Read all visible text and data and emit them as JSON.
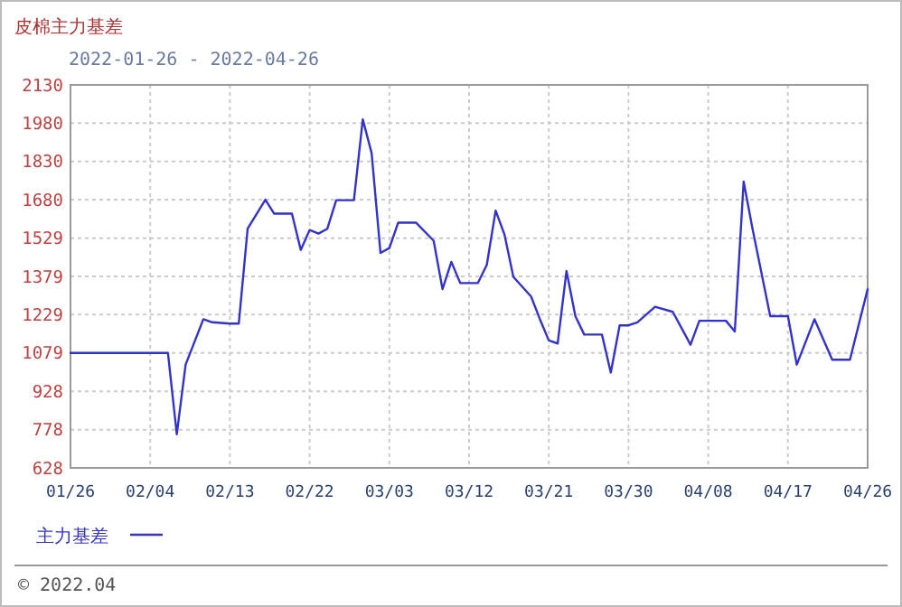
{
  "chart_data": {
    "type": "line",
    "title": "皮棉主力基差",
    "subtitle": "2022-01-26 - 2022-04-26",
    "x": [
      "2022-01-26",
      "2022-02-06",
      "2022-02-07",
      "2022-02-08",
      "2022-02-10",
      "2022-02-11",
      "2022-02-13",
      "2022-02-14",
      "2022-02-15",
      "2022-02-17",
      "2022-02-18",
      "2022-02-20",
      "2022-02-21",
      "2022-02-22",
      "2022-02-23",
      "2022-02-24",
      "2022-02-25",
      "2022-02-27",
      "2022-02-28",
      "2022-03-01",
      "2022-03-02",
      "2022-03-03",
      "2022-03-04",
      "2022-03-06",
      "2022-03-08",
      "2022-03-09",
      "2022-03-10",
      "2022-03-11",
      "2022-03-13",
      "2022-03-14",
      "2022-03-15",
      "2022-03-16",
      "2022-03-17",
      "2022-03-19",
      "2022-03-20",
      "2022-03-21",
      "2022-03-22",
      "2022-03-23",
      "2022-03-24",
      "2022-03-25",
      "2022-03-27",
      "2022-03-28",
      "2022-03-29",
      "2022-03-30",
      "2022-03-31",
      "2022-04-02",
      "2022-04-04",
      "2022-04-06",
      "2022-04-07",
      "2022-04-10",
      "2022-04-11",
      "2022-04-12",
      "2022-04-13",
      "2022-04-15",
      "2022-04-17",
      "2022-04-18",
      "2022-04-20",
      "2022-04-22",
      "2022-04-24",
      "2022-04-26"
    ],
    "series": [
      {
        "name": "主力基差",
        "color": "#3333cc",
        "values": [
          1079,
          1079,
          760,
          1033,
          1211,
          1199,
          1194,
          1194,
          1566,
          1680,
          1625,
          1625,
          1483,
          1561,
          1547,
          1566,
          1678,
          1678,
          1995,
          1862,
          1471,
          1490,
          1590,
          1590,
          1519,
          1329,
          1436,
          1353,
          1353,
          1424,
          1637,
          1543,
          1377,
          1300,
          1211,
          1128,
          1116,
          1400,
          1223,
          1151,
          1151,
          1002,
          1187,
          1187,
          1199,
          1260,
          1240,
          1111,
          1205,
          1205,
          1163,
          1751,
          1566,
          1223,
          1223,
          1033,
          1211,
          1052,
          1052,
          1329
        ]
      }
    ],
    "xlim": [
      "2022-01-26",
      "2022-04-26"
    ],
    "xticks": [
      {
        "value": "2022-01-26",
        "label": "01/26"
      },
      {
        "value": "2022-02-04",
        "label": "02/04"
      },
      {
        "value": "2022-02-13",
        "label": "02/13"
      },
      {
        "value": "2022-02-22",
        "label": "02/22"
      },
      {
        "value": "2022-03-03",
        "label": "03/03"
      },
      {
        "value": "2022-03-12",
        "label": "03/12"
      },
      {
        "value": "2022-03-21",
        "label": "03/21"
      },
      {
        "value": "2022-03-30",
        "label": "03/30"
      },
      {
        "value": "2022-04-08",
        "label": "04/08"
      },
      {
        "value": "2022-04-17",
        "label": "04/17"
      },
      {
        "value": "2022-04-26",
        "label": "04/26"
      }
    ],
    "ylim": [
      628,
      2130
    ],
    "yticks": [
      628,
      778,
      928,
      1079,
      1229,
      1379,
      1529,
      1680,
      1830,
      1980,
      2130
    ],
    "grid": true,
    "legend": "bottom left",
    "marker": "none",
    "line_style": "solid",
    "annotations": [
      "© 2022.04"
    ]
  }
}
